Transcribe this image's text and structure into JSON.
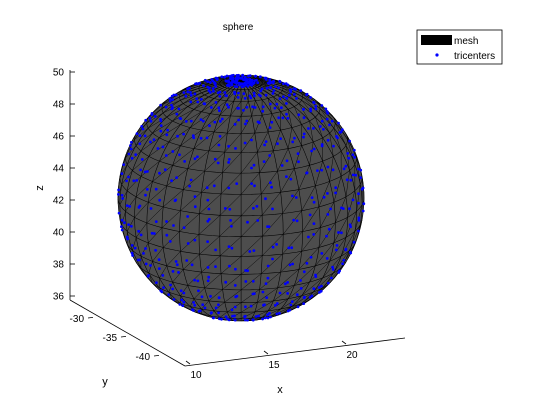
{
  "chart_data": {
    "type": "scatter",
    "title": "sphere",
    "xlabel": "x",
    "ylabel": "y",
    "zlabel": "z",
    "grid": false,
    "legend_position": "top-right",
    "xlim": [
      8,
      26
    ],
    "ylim": [
      -44,
      -29
    ],
    "zlim": [
      35.5,
      50.5
    ],
    "x_ticks": [
      "10",
      "15",
      "20"
    ],
    "y_ticks": [
      "-30",
      "-35",
      "-40"
    ],
    "z_ticks": [
      "36",
      "38",
      "40",
      "42",
      "44",
      "46",
      "48",
      "50"
    ],
    "sphere": {
      "center": [
        17,
        -36.5,
        43
      ],
      "radius": 7
    },
    "series": [
      {
        "name": "mesh",
        "kind": "surface",
        "face_color": "#4d4d4d",
        "edge_color": "#000000"
      },
      {
        "name": "tricenters",
        "kind": "points",
        "marker": "dot",
        "color": "#0000ff"
      }
    ]
  },
  "colors": {
    "mesh_face": "#4d4d4d",
    "mesh_edge": "#000000",
    "points": "#0000ff",
    "axes": "#000000"
  }
}
